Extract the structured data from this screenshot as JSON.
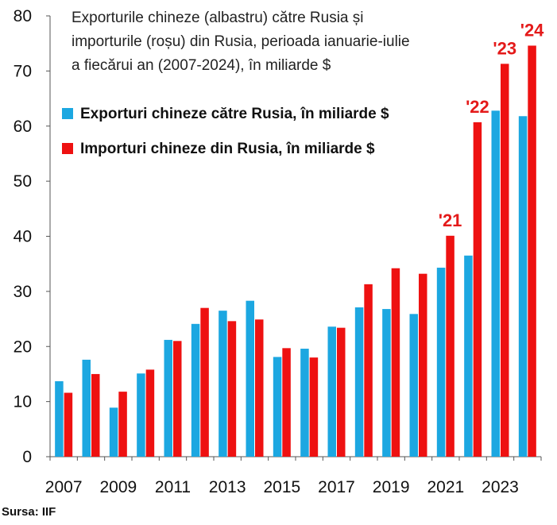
{
  "chart_data": {
    "type": "bar",
    "title": "Exporturile chineze (albastru) către Rusia și importurile (roșu) din Rusia, perioada ianuarie-iulie a fiecărui an (2007-2024), în miliarde $",
    "title_lines": [
      "Exporturile chineze (albastru) către Rusia și",
      "importurile (roșu) din Rusia, perioada ianuarie-iulie",
      "a fiecărui an (2007-2024), în miliarde $"
    ],
    "xlabel": "",
    "ylabel": "",
    "ylim": [
      0,
      80
    ],
    "yticks": [
      0,
      10,
      20,
      30,
      40,
      50,
      60,
      70,
      80
    ],
    "grid": false,
    "legend_position": "top-left",
    "categories": [
      "2007",
      "2008",
      "2009",
      "2010",
      "2011",
      "2012",
      "2013",
      "2014",
      "2015",
      "2016",
      "2017",
      "2018",
      "2019",
      "2020",
      "2021",
      "2022",
      "2023",
      "2024"
    ],
    "xtick_labels": [
      "2007",
      "2009",
      "2011",
      "2013",
      "2015",
      "2017",
      "2019",
      "2021",
      "2023"
    ],
    "series": [
      {
        "name": "Exporturi chineze către Rusia, în miliarde $",
        "color": "#1CA7E1",
        "values": [
          13.7,
          17.6,
          8.9,
          15.1,
          21.2,
          24.1,
          26.5,
          28.3,
          18.1,
          19.6,
          23.6,
          27.1,
          26.8,
          25.9,
          34.3,
          36.5,
          62.8,
          61.8
        ]
      },
      {
        "name": "Importuri chineze din Rusia, în miliarde $",
        "color": "#EE1111",
        "values": [
          11.6,
          15.0,
          11.8,
          15.8,
          21.0,
          27.0,
          24.6,
          24.9,
          19.7,
          18.0,
          23.4,
          31.3,
          34.2,
          33.2,
          40.1,
          60.7,
          71.3,
          74.6
        ]
      }
    ],
    "annotations": [
      {
        "category": "2021",
        "text": "'21",
        "color": "#E41A1A"
      },
      {
        "category": "2022",
        "text": "'22",
        "color": "#E41A1A"
      },
      {
        "category": "2023",
        "text": "'23",
        "color": "#E41A1A"
      },
      {
        "category": "2024",
        "text": "'24",
        "color": "#E41A1A"
      }
    ]
  },
  "source": "Sursa: IIF"
}
